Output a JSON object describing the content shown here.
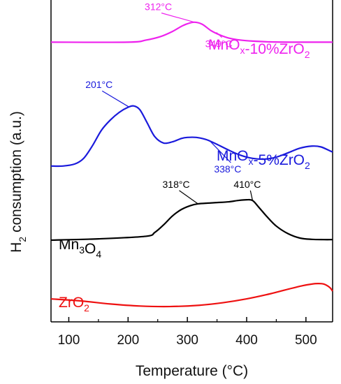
{
  "chart_data": {
    "type": "line",
    "title": "",
    "xlabel": "Temperature (°C)",
    "ylabel_main": "H",
    "ylabel_sub": "2",
    "ylabel_rest": " consumption (a.u.)",
    "xlim": [
      70,
      545
    ],
    "xticks": [
      100,
      200,
      300,
      400,
      500
    ],
    "yticks_shown": false,
    "series": [
      {
        "name_parts": [
          [
            "MnO",
            ""
          ],
          [
            "x",
            "sub"
          ],
          [
            "-10%ZrO",
            ""
          ],
          [
            "2",
            "sub"
          ]
        ],
        "color": "#ee22ee",
        "offset": 10.35,
        "x": [
          70,
          200,
          230,
          255,
          275,
          290,
          300,
          312,
          325,
          340,
          355,
          370,
          390,
          410,
          440,
          480,
          520,
          545
        ],
        "y": [
          0,
          0,
          0.08,
          0.22,
          0.42,
          0.62,
          0.72,
          0.78,
          0.7,
          0.45,
          0.28,
          0.16,
          0.08,
          0.04,
          0.01,
          0,
          0,
          0
        ],
        "annotations": [
          {
            "text": "312°C",
            "x": 312,
            "y": 0.78,
            "label_x": 228,
            "label_y": 1.25
          },
          {
            "text": "349°C",
            "x": 349,
            "y": 0.38,
            "label_x": 330,
            "label_y": -0.2
          }
        ]
      },
      {
        "name_parts": [
          [
            "MnO",
            ""
          ],
          [
            "x",
            "sub"
          ],
          [
            "-5%ZrO",
            ""
          ],
          [
            "2",
            "sub"
          ]
        ],
        "color": "#1a1adc",
        "offset": 5.5,
        "x": [
          70,
          90,
          110,
          125,
          140,
          155,
          170,
          185,
          200,
          210,
          220,
          232,
          245,
          260,
          275,
          290,
          300,
          315,
          330,
          338,
          350,
          370,
          390,
          410,
          430,
          450,
          470,
          490,
          510,
          525,
          540,
          545
        ],
        "y": [
          0,
          0,
          0.08,
          0.3,
          0.8,
          1.4,
          1.8,
          2.1,
          2.3,
          2.35,
          2.2,
          1.7,
          1.15,
          0.9,
          0.95,
          1.08,
          1.12,
          1.12,
          1.05,
          0.98,
          0.85,
          0.62,
          0.42,
          0.3,
          0.27,
          0.35,
          0.52,
          0.7,
          0.78,
          0.75,
          0.6,
          0.55
        ],
        "annotations": [
          {
            "text": "201°C",
            "x": 201,
            "y": 2.32,
            "label_x": 128,
            "label_y": 3.05
          },
          {
            "text": "338°C",
            "x": 338,
            "y": 0.98,
            "label_x": 345,
            "label_y": -0.25
          }
        ]
      },
      {
        "name_parts": [
          [
            "Mn",
            ""
          ],
          [
            "3",
            "sub"
          ],
          [
            "O",
            ""
          ],
          [
            "4",
            "sub"
          ]
        ],
        "color": "#000000",
        "offset": 2.6,
        "x": [
          70,
          150,
          230,
          245,
          260,
          275,
          290,
          305,
          318,
          335,
          350,
          370,
          385,
          400,
          410,
          420,
          435,
          450,
          470,
          490,
          510,
          530,
          545
        ],
        "y": [
          0,
          0.05,
          0.15,
          0.3,
          0.6,
          0.95,
          1.2,
          1.35,
          1.42,
          1.45,
          1.47,
          1.5,
          1.55,
          1.58,
          1.55,
          1.3,
          0.9,
          0.55,
          0.25,
          0.08,
          0.03,
          0.02,
          0.02
        ],
        "annotations": [
          {
            "text": "318°C",
            "x": 318,
            "y": 1.42,
            "label_x": 258,
            "label_y": 2.05
          },
          {
            "text": "410°C",
            "x": 410,
            "y": 1.55,
            "label_x": 378,
            "label_y": 2.05
          }
        ]
      },
      {
        "name_parts": [
          [
            "ZrO",
            ""
          ],
          [
            "2",
            "sub"
          ]
        ],
        "color": "#ee1111",
        "offset": 0,
        "x": [
          70,
          120,
          170,
          220,
          270,
          320,
          360,
          400,
          440,
          470,
          495,
          510,
          520,
          530,
          540,
          545
        ],
        "y": [
          0.3,
          0.22,
          0.1,
          0.02,
          0,
          0.05,
          0.15,
          0.3,
          0.5,
          0.68,
          0.82,
          0.88,
          0.9,
          0.88,
          0.75,
          0.6
        ],
        "annotations": []
      }
    ]
  }
}
